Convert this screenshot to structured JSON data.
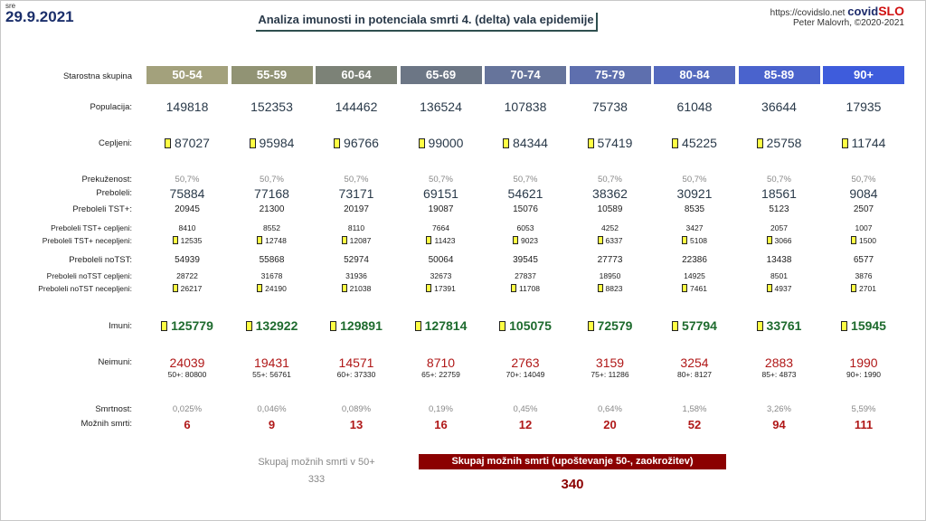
{
  "header": {
    "day": "sre",
    "date": "29.9.2021",
    "title": "Analiza imunosti in potenciala smrti 4. (delta) vala epidemije",
    "site": "https://covidslo.net",
    "brand_a": "covid",
    "brand_b": "SLO",
    "author": "Peter Malovrh, ©2020-2021"
  },
  "labels": {
    "age": "Starostna skupina",
    "pop": "Populacija:",
    "vacc": "Cepljeni:",
    "infected": "Prekuženost:",
    "recovered": "Preboleli:",
    "tst": "Preboleli TST+:",
    "tst_vacc": "Preboleli TST+ cepljeni:",
    "tst_unvacc": "Preboleli TST+ necepljeni:",
    "notst": "Preboleli noTST:",
    "notst_vacc": "Preboleli noTST cepljeni:",
    "notst_unvacc": "Preboleli noTST necepljeni:",
    "immune": "Imuni:",
    "nonimmune": "Neimuni:",
    "mortality": "Smrtnost:",
    "deaths": "Možnih smrti:"
  },
  "groups": [
    {
      "age": "50-54",
      "color": "#a3a17c",
      "pop": "149818",
      "vacc": "87027",
      "infected": "50,7%",
      "recovered": "75884",
      "tst": "20945",
      "tst_vacc": "8410",
      "tst_unvacc": "12535",
      "notst": "54939",
      "notst_vacc": "28722",
      "notst_unvacc": "26217",
      "immune": "125779",
      "nonimmune": "24039",
      "nonimmune_cum": "50+: 80800",
      "mortality": "0,025%",
      "deaths": "6"
    },
    {
      "age": "55-59",
      "color": "#919374",
      "pop": "152353",
      "vacc": "95984",
      "infected": "50,7%",
      "recovered": "77168",
      "tst": "21300",
      "tst_vacc": "8552",
      "tst_unvacc": "12748",
      "notst": "55868",
      "notst_vacc": "31678",
      "notst_unvacc": "24190",
      "immune": "132922",
      "nonimmune": "19431",
      "nonimmune_cum": "55+: 56761",
      "mortality": "0,046%",
      "deaths": "9"
    },
    {
      "age": "60-64",
      "color": "#7c8277",
      "pop": "144462",
      "vacc": "96766",
      "infected": "50,7%",
      "recovered": "73171",
      "tst": "20197",
      "tst_vacc": "8110",
      "tst_unvacc": "12087",
      "notst": "52974",
      "notst_vacc": "31936",
      "notst_unvacc": "21038",
      "immune": "129891",
      "nonimmune": "14571",
      "nonimmune_cum": "60+: 37330",
      "mortality": "0,089%",
      "deaths": "13"
    },
    {
      "age": "65-69",
      "color": "#6c7685",
      "pop": "136524",
      "vacc": "99000",
      "infected": "50,7%",
      "recovered": "69151",
      "tst": "19087",
      "tst_vacc": "7664",
      "tst_unvacc": "11423",
      "notst": "50064",
      "notst_vacc": "32673",
      "notst_unvacc": "17391",
      "immune": "127814",
      "nonimmune": "8710",
      "nonimmune_cum": "65+: 22759",
      "mortality": "0,19%",
      "deaths": "16"
    },
    {
      "age": "70-74",
      "color": "#66749b",
      "pop": "107838",
      "vacc": "84344",
      "infected": "50,7%",
      "recovered": "54621",
      "tst": "15076",
      "tst_vacc": "6053",
      "tst_unvacc": "9023",
      "notst": "39545",
      "notst_vacc": "27837",
      "notst_unvacc": "11708",
      "immune": "105075",
      "nonimmune": "2763",
      "nonimmune_cum": "70+: 14049",
      "mortality": "0,45%",
      "deaths": "12"
    },
    {
      "age": "75-79",
      "color": "#5e6fae",
      "pop": "75738",
      "vacc": "57419",
      "infected": "50,7%",
      "recovered": "38362",
      "tst": "10589",
      "tst_vacc": "4252",
      "tst_unvacc": "6337",
      "notst": "27773",
      "notst_vacc": "18950",
      "notst_unvacc": "8823",
      "immune": "72579",
      "nonimmune": "3159",
      "nonimmune_cum": "75+: 11286",
      "mortality": "0,64%",
      "deaths": "20"
    },
    {
      "age": "80-84",
      "color": "#5469be",
      "pop": "61048",
      "vacc": "45225",
      "infected": "50,7%",
      "recovered": "30921",
      "tst": "8535",
      "tst_vacc": "3427",
      "tst_unvacc": "5108",
      "notst": "22386",
      "notst_vacc": "14925",
      "notst_unvacc": "7461",
      "immune": "57794",
      "nonimmune": "3254",
      "nonimmune_cum": "80+: 8127",
      "mortality": "1,58%",
      "deaths": "52"
    },
    {
      "age": "85-89",
      "color": "#4a63cd",
      "pop": "36644",
      "vacc": "25758",
      "infected": "50,7%",
      "recovered": "18561",
      "tst": "5123",
      "tst_vacc": "2057",
      "tst_unvacc": "3066",
      "notst": "13438",
      "notst_vacc": "8501",
      "notst_unvacc": "4937",
      "immune": "33761",
      "nonimmune": "2883",
      "nonimmune_cum": "85+: 4873",
      "mortality": "3,26%",
      "deaths": "94"
    },
    {
      "age": "90+",
      "color": "#3e5cdc",
      "pop": "17935",
      "vacc": "11744",
      "infected": "50,7%",
      "recovered": "9084",
      "tst": "2507",
      "tst_vacc": "1007",
      "tst_unvacc": "1500",
      "notst": "6577",
      "notst_vacc": "3876",
      "notst_unvacc": "2701",
      "immune": "15945",
      "nonimmune": "1990",
      "nonimmune_cum": "90+: 1990",
      "mortality": "5,59%",
      "deaths": "111"
    }
  ],
  "totals": {
    "label_50plus": "Skupaj možnih smrti v 50+",
    "value_50plus": "333",
    "label_all": "Skupaj možnih smrti (upoštevanje 50-, zaokrožitev)",
    "value_all": "340"
  }
}
